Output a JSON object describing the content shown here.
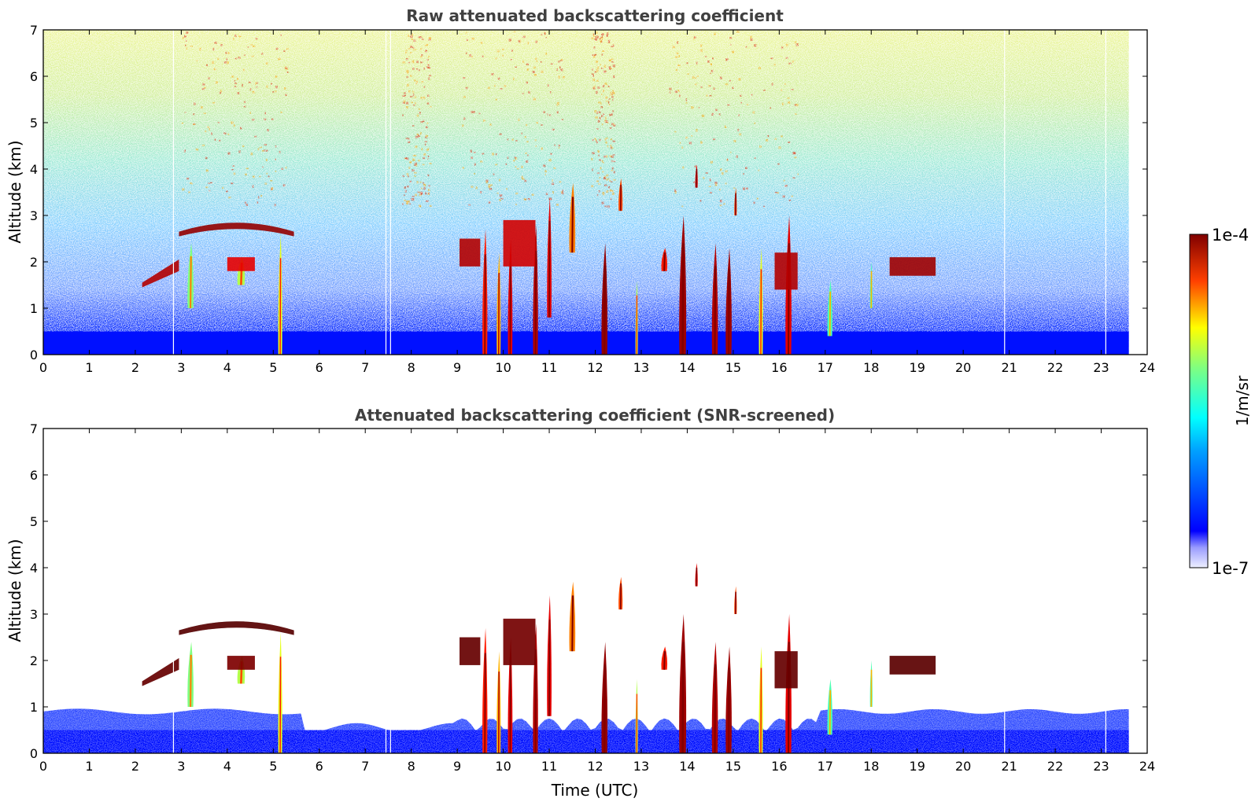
{
  "chart_data": [
    {
      "type": "heatmap",
      "title": "Raw attenuated backscattering coefficient",
      "xlabel": "",
      "ylabel": "Altitude (km)",
      "xlim": [
        0,
        24
      ],
      "ylim": [
        0,
        7
      ],
      "xticks": [
        "0",
        "1",
        "2",
        "3",
        "4",
        "5",
        "6",
        "7",
        "8",
        "9",
        "10",
        "11",
        "12",
        "13",
        "14",
        "15",
        "16",
        "17",
        "18",
        "19",
        "20",
        "21",
        "22",
        "23",
        "24"
      ],
      "yticks": [
        "0",
        "1",
        "2",
        "3",
        "4",
        "5",
        "6",
        "7"
      ],
      "data_end_time": 23.6,
      "regions": [
        {
          "feature": "noisy background, increasing with altitude",
          "x": [
            0,
            23.6
          ],
          "y": [
            0,
            7
          ]
        },
        {
          "feature": "dense near-surface layer",
          "x": [
            0,
            23.6
          ],
          "y": [
            0,
            0.5
          ]
        },
        {
          "feature": "elevated cloud layer",
          "x": [
            2.2,
            3.0
          ],
          "y": [
            1.6,
            2.1
          ]
        },
        {
          "feature": "cloud layer",
          "x": [
            3.0,
            5.5
          ],
          "y": [
            2.5,
            2.8
          ]
        },
        {
          "feature": "cloud layer",
          "x": [
            4.0,
            4.6
          ],
          "y": [
            1.8,
            2.1
          ]
        },
        {
          "feature": "convective clouds",
          "x": [
            9.0,
            16.5
          ],
          "y": [
            0,
            4.1
          ]
        },
        {
          "feature": "cloud layer",
          "x": [
            18.4,
            19.4
          ],
          "y": [
            1.7,
            2.1
          ]
        }
      ]
    },
    {
      "type": "heatmap",
      "title": "Attenuated backscattering coefficient (SNR-screened)",
      "xlabel": "Time (UTC)",
      "ylabel": "Altitude (km)",
      "xlim": [
        0,
        24
      ],
      "ylim": [
        0,
        7
      ],
      "xticks": [
        "0",
        "1",
        "2",
        "3",
        "4",
        "5",
        "6",
        "7",
        "8",
        "9",
        "10",
        "11",
        "12",
        "13",
        "14",
        "15",
        "16",
        "17",
        "18",
        "19",
        "20",
        "21",
        "22",
        "23",
        "24"
      ],
      "yticks": [
        "0",
        "1",
        "2",
        "3",
        "4",
        "5",
        "6",
        "7"
      ],
      "data_end_time": 23.6,
      "regions": [
        {
          "feature": "boundary layer",
          "x": [
            0,
            23.6
          ],
          "y": [
            0,
            1.0
          ]
        },
        {
          "feature": "elevated cloud layer",
          "x": [
            2.2,
            3.0
          ],
          "y": [
            1.6,
            2.1
          ]
        },
        {
          "feature": "cloud layer",
          "x": [
            3.0,
            5.5
          ],
          "y": [
            2.5,
            2.8
          ]
        },
        {
          "feature": "convective clouds",
          "x": [
            9.0,
            16.5
          ],
          "y": [
            0,
            4.1
          ]
        },
        {
          "feature": "cloud layer",
          "x": [
            18.4,
            19.4
          ],
          "y": [
            1.7,
            2.1
          ]
        }
      ]
    }
  ],
  "colorbar": {
    "label": "1/m/sr",
    "min_label": "1e-7",
    "max_label": "1e-4",
    "colormap": "jet"
  },
  "colors": {
    "background": "#ffffff",
    "title": "#404040",
    "surface_blue": "#0010ff"
  }
}
